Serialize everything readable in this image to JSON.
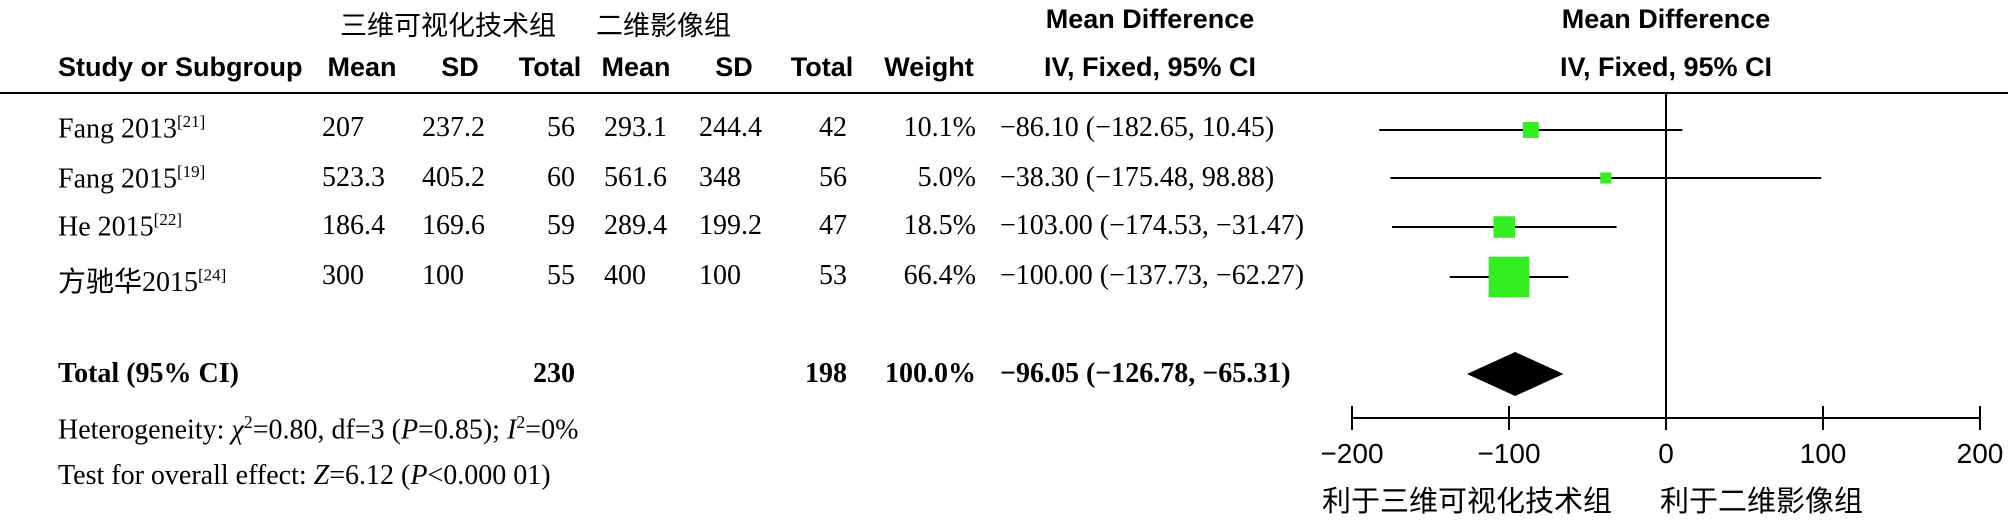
{
  "header": {
    "group1": "三维可视化技术组",
    "group2": "二维影像组",
    "md_title_left": "Mean Difference",
    "md_sub_left": "IV, Fixed, 95% CI",
    "md_title_right": "Mean Difference",
    "md_sub_right": "IV, Fixed, 95% CI",
    "columns": [
      "Study or Subgroup",
      "Mean",
      "SD",
      "Total",
      "Mean",
      "SD",
      "Total",
      "Weight"
    ]
  },
  "studies": [
    {
      "name": "Fang 2013",
      "ref": "[21]",
      "mean1": "207",
      "sd1": "237.2",
      "n1": "56",
      "mean2": "293.1",
      "sd2": "244.4",
      "n2": "42",
      "weight": "10.1%",
      "ci_text": "−86.10 (−182.65, 10.45)"
    },
    {
      "name": "Fang 2015",
      "ref": "[19]",
      "mean1": "523.3",
      "sd1": "405.2",
      "n1": "60",
      "mean2": "561.6",
      "sd2": "348",
      "n2": "56",
      "weight": "5.0%",
      "ci_text": "−38.30 (−175.48, 98.88)"
    },
    {
      "name": "He 2015",
      "ref": "[22]",
      "mean1": "186.4",
      "sd1": "169.6",
      "n1": "59",
      "mean2": "289.4",
      "sd2": "199.2",
      "n2": "47",
      "weight": "18.5%",
      "ci_text": "−103.00 (−174.53, −31.47)"
    },
    {
      "name": "方驰华2015",
      "ref": "[24]",
      "mean1": "300",
      "sd1": "100",
      "n1": "55",
      "mean2": "400",
      "sd2": "100",
      "n2": "53",
      "weight": "66.4%",
      "ci_text": "−100.00 (−137.73, −62.27)"
    }
  ],
  "total": {
    "label": "Total (95% CI)",
    "n1": "230",
    "n2": "198",
    "weight": "100.0%",
    "ci_text": "−96.05 (−126.78, −65.31)"
  },
  "heterogeneity": {
    "prefix": "Heterogeneity: ",
    "chi": "χ",
    "chi_sup": "2",
    "mid": "=0.80, df=3 (",
    "p": "P",
    "p_val": "=0.85); ",
    "i": "I",
    "i_sup": "2",
    "i_val": "=0%"
  },
  "overall": {
    "prefix": "Test for overall effect: ",
    "z": "Z",
    "z_val": "=6.12 (",
    "p": "P",
    "p_val": "<0.000 01)"
  },
  "axis_labels": {
    "favours_left": "利于三维可视化技术组",
    "favours_right": "利于二维影像组"
  },
  "colors": {
    "square": "#33ee22",
    "diamond": "#000000",
    "line": "#000000"
  },
  "chart_data": {
    "type": "forest",
    "xlim": [
      -200,
      200
    ],
    "ticks": [
      -200,
      -100,
      0,
      100,
      200
    ],
    "tick_labels": [
      "−200",
      "−100",
      "0",
      "100",
      "200"
    ],
    "null_line": 0,
    "studies": [
      {
        "name": "Fang 2013",
        "estimate": -86.1,
        "lower": -182.65,
        "upper": 10.45,
        "weight": 10.1
      },
      {
        "name": "Fang 2015",
        "estimate": -38.3,
        "lower": -175.48,
        "upper": 98.88,
        "weight": 5.0
      },
      {
        "name": "He 2015",
        "estimate": -103.0,
        "lower": -174.53,
        "upper": -31.47,
        "weight": 18.5
      },
      {
        "name": "方驰华2015",
        "estimate": -100.0,
        "lower": -137.73,
        "upper": -62.27,
        "weight": 66.4
      }
    ],
    "pooled": {
      "estimate": -96.05,
      "lower": -126.78,
      "upper": -65.31
    }
  }
}
